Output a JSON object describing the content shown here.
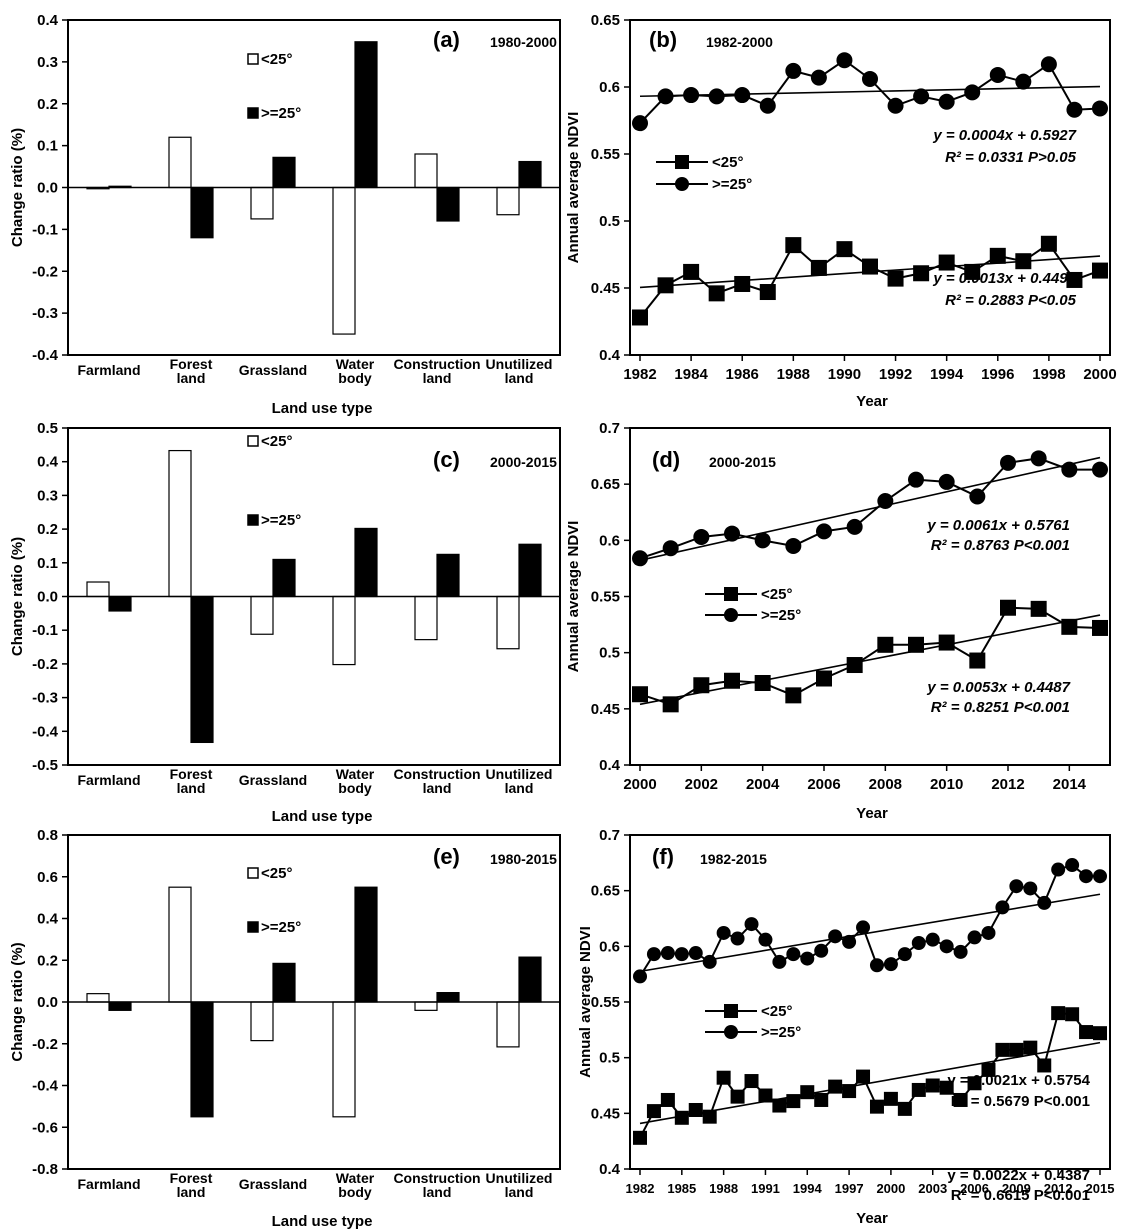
{
  "chart_data": [
    {
      "id": "a",
      "type": "bar",
      "panel_label": "(a)",
      "period": "1980-2000",
      "ylabel": "Change ratio (%)",
      "xlabel": "Land use type",
      "categories": [
        [
          "Farmland"
        ],
        [
          "Forest",
          "land"
        ],
        [
          "Grassland"
        ],
        [
          "Water",
          "body"
        ],
        [
          "Construction",
          "land"
        ],
        [
          "Unutilized",
          "land"
        ]
      ],
      "ylim": [
        -0.4,
        0.4
      ],
      "yticks": [
        "0.4",
        "0.3",
        "0.2",
        "0.1",
        "0.0",
        "-0.1",
        "-0.2",
        "-0.3",
        "-0.4"
      ],
      "legend": [
        "<25°",
        ">=25°"
      ],
      "series": [
        {
          "name": "<25°",
          "values": [
            -0.003,
            0.12,
            -0.075,
            -0.35,
            0.08,
            -0.065
          ]
        },
        {
          "name": ">=25°",
          "values": [
            0.003,
            -0.12,
            0.072,
            0.348,
            -0.08,
            0.062
          ]
        }
      ]
    },
    {
      "id": "b",
      "type": "line",
      "panel_label": "(b)",
      "period": "1982-2000",
      "ylabel": "Annual average NDVI",
      "xlabel": "Year",
      "ylim": [
        0.4,
        0.65
      ],
      "yticks": [
        "0.65",
        "0.6",
        "0.55",
        "0.5",
        "0.45",
        "0.4"
      ],
      "xticks": [
        "1982",
        "1984",
        "1986",
        "1988",
        "1990",
        "1992",
        "1994",
        "1996",
        "1998",
        "2000"
      ],
      "legend": [
        "<25°",
        ">=25°"
      ],
      "x": [
        1982,
        1983,
        1984,
        1985,
        1986,
        1987,
        1988,
        1989,
        1990,
        1991,
        1992,
        1993,
        1994,
        1995,
        1996,
        1997,
        1998,
        1999,
        2000
      ],
      "series": [
        {
          "name": "<25°",
          "values": [
            0.428,
            0.452,
            0.462,
            0.446,
            0.453,
            0.447,
            0.482,
            0.465,
            0.479,
            0.466,
            0.457,
            0.461,
            0.469,
            0.462,
            0.474,
            0.47,
            0.483,
            0.456,
            0.463
          ]
        },
        {
          "name": ">=25°",
          "values": [
            0.573,
            0.593,
            0.594,
            0.593,
            0.594,
            0.586,
            0.612,
            0.607,
            0.62,
            0.606,
            0.586,
            0.593,
            0.589,
            0.596,
            0.609,
            0.604,
            0.617,
            0.583,
            0.584
          ]
        }
      ],
      "equations": [
        {
          "eq": "y = 0.0004x + 0.5927",
          "r2": "R² = 0.0331 P>0.05"
        },
        {
          "eq": "y = 0.0013x + 0.4491",
          "r2": "R² = 0.2883 P<0.05"
        }
      ]
    },
    {
      "id": "c",
      "type": "bar",
      "panel_label": "(c)",
      "period": "2000-2015",
      "ylabel": "Change ratio (%)",
      "xlabel": "Land use type",
      "categories": [
        [
          "Farmland"
        ],
        [
          "Forest",
          "land"
        ],
        [
          "Grassland"
        ],
        [
          "Water",
          "body"
        ],
        [
          "Construction",
          "land"
        ],
        [
          "Unutilized",
          "land"
        ]
      ],
      "ylim": [
        -0.5,
        0.5
      ],
      "yticks": [
        "0.5",
        "0.4",
        "0.3",
        "0.2",
        "0.1",
        "0.0",
        "-0.1",
        "-0.2",
        "-0.3",
        "-0.4",
        "-0.5"
      ],
      "legend": [
        "<25°",
        ">=25°"
      ],
      "series": [
        {
          "name": "<25°",
          "values": [
            0.043,
            0.433,
            -0.112,
            -0.202,
            -0.128,
            -0.155
          ]
        },
        {
          "name": ">=25°",
          "values": [
            -0.043,
            -0.433,
            0.11,
            0.202,
            0.125,
            0.155
          ]
        }
      ]
    },
    {
      "id": "d",
      "type": "line",
      "panel_label": "(d)",
      "period": "2000-2015",
      "ylabel": "Annual average NDVI",
      "xlabel": "Year",
      "ylim": [
        0.4,
        0.7
      ],
      "yticks": [
        "0.7",
        "0.65",
        "0.6",
        "0.55",
        "0.5",
        "0.45",
        "0.4"
      ],
      "xticks": [
        "2000",
        "2002",
        "2004",
        "2006",
        "2008",
        "2010",
        "2012",
        "2014"
      ],
      "legend": [
        "<25°",
        ">=25°"
      ],
      "x": [
        2000,
        2001,
        2002,
        2003,
        2004,
        2005,
        2006,
        2007,
        2008,
        2009,
        2010,
        2011,
        2012,
        2013,
        2014,
        2015
      ],
      "series": [
        {
          "name": "<25°",
          "values": [
            0.463,
            0.454,
            0.471,
            0.475,
            0.473,
            0.462,
            0.477,
            0.489,
            0.507,
            0.507,
            0.509,
            0.493,
            0.54,
            0.539,
            0.523,
            0.522
          ]
        },
        {
          "name": ">=25°",
          "values": [
            0.584,
            0.593,
            0.603,
            0.606,
            0.6,
            0.595,
            0.608,
            0.612,
            0.635,
            0.654,
            0.652,
            0.639,
            0.669,
            0.673,
            0.663,
            0.663
          ]
        }
      ],
      "equations": [
        {
          "eq": "y = 0.0061x + 0.5761",
          "r2": "R² = 0.8763 P<0.001"
        },
        {
          "eq": "y = 0.0053x + 0.4487",
          "r2": "R² = 0.8251 P<0.001"
        }
      ]
    },
    {
      "id": "e",
      "type": "bar",
      "panel_label": "(e)",
      "period": "1980-2015",
      "ylabel": "Change ratio (%)",
      "xlabel": "Land use type",
      "categories": [
        [
          "Farmland"
        ],
        [
          "Forest",
          "land"
        ],
        [
          "Grassland"
        ],
        [
          "Water",
          "body"
        ],
        [
          "Construction",
          "land"
        ],
        [
          "Unutilized",
          "land"
        ]
      ],
      "ylim": [
        -0.8,
        0.8
      ],
      "yticks": [
        "0.8",
        "0.6",
        "0.4",
        "0.2",
        "0.0",
        "-0.2",
        "-0.4",
        "-0.6",
        "-0.8"
      ],
      "legend": [
        "<25°",
        ">=25°"
      ],
      "series": [
        {
          "name": "<25°",
          "values": [
            0.04,
            0.55,
            -0.185,
            -0.55,
            -0.04,
            -0.215
          ]
        },
        {
          "name": ">=25°",
          "values": [
            -0.04,
            -0.55,
            0.185,
            0.55,
            0.045,
            0.215
          ]
        }
      ]
    },
    {
      "id": "f",
      "type": "line",
      "panel_label": "(f)",
      "period": "1982-2015",
      "ylabel": "Annual average NDVI",
      "xlabel": "Year",
      "ylim": [
        0.4,
        0.7
      ],
      "yticks": [
        "0.7",
        "0.65",
        "0.6",
        "0.55",
        "0.5",
        "0.45",
        "0.4"
      ],
      "xticks": [
        "1982",
        "1985",
        "1988",
        "1991",
        "1994",
        "1997",
        "2000",
        "2003",
        "2006",
        "2009",
        "2012",
        "2015"
      ],
      "legend": [
        "<25°",
        ">=25°"
      ],
      "x": [
        1982,
        1983,
        1984,
        1985,
        1986,
        1987,
        1988,
        1989,
        1990,
        1991,
        1992,
        1993,
        1994,
        1995,
        1996,
        1997,
        1998,
        1999,
        2000,
        2001,
        2002,
        2003,
        2004,
        2005,
        2006,
        2007,
        2008,
        2009,
        2010,
        2011,
        2012,
        2013,
        2014,
        2015
      ],
      "series": [
        {
          "name": "<25°",
          "values": [
            0.428,
            0.452,
            0.462,
            0.446,
            0.453,
            0.447,
            0.482,
            0.465,
            0.479,
            0.466,
            0.457,
            0.461,
            0.469,
            0.462,
            0.474,
            0.47,
            0.483,
            0.456,
            0.463,
            0.454,
            0.471,
            0.475,
            0.473,
            0.462,
            0.477,
            0.489,
            0.507,
            0.507,
            0.509,
            0.493,
            0.54,
            0.539,
            0.523,
            0.522
          ]
        },
        {
          "name": ">=25°",
          "values": [
            0.573,
            0.593,
            0.594,
            0.593,
            0.594,
            0.586,
            0.612,
            0.607,
            0.62,
            0.606,
            0.586,
            0.593,
            0.589,
            0.596,
            0.609,
            0.604,
            0.617,
            0.583,
            0.584,
            0.593,
            0.603,
            0.606,
            0.6,
            0.595,
            0.608,
            0.612,
            0.635,
            0.654,
            0.652,
            0.639,
            0.669,
            0.673,
            0.663,
            0.663
          ]
        }
      ],
      "equations": [
        {
          "eq": "y = 0.0021x + 0.5754",
          "r2": "R² = 0.5679 P<0.001"
        },
        {
          "eq": "y = 0.0022x + 0.4387",
          "r2": "R² = 0.6615 P<0.001"
        }
      ]
    }
  ]
}
